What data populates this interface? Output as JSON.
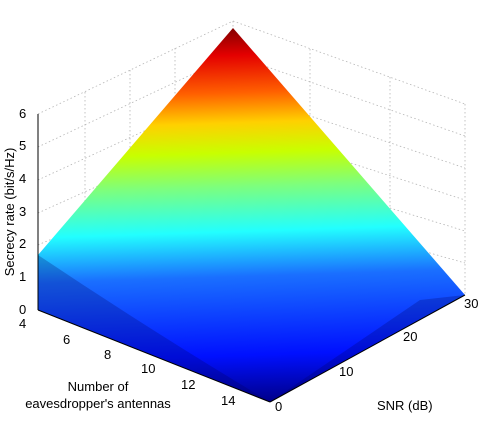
{
  "chart_data": {
    "type": "surface",
    "title": "",
    "xlabel_lines": [
      "Number of",
      "eavesdropper's antennas"
    ],
    "ylabel": "SNR (dB)",
    "zlabel": "Secrecy rate (bit/s/Hz)",
    "x_ticks": [
      "4",
      "6",
      "8",
      "10",
      "12",
      "14"
    ],
    "y_ticks": [
      "0",
      "10",
      "20",
      "30"
    ],
    "z_ticks": [
      "0",
      "1",
      "2",
      "3",
      "4",
      "5",
      "6"
    ],
    "xlim": [
      4,
      15
    ],
    "ylim": [
      0,
      30
    ],
    "zlim": [
      0,
      6
    ],
    "colormap": "jet",
    "grid": true,
    "corner_values": {
      "x4_snr0": 0.0,
      "x4_snr30": 6.1,
      "x15_snr0": 0.0,
      "x15_snr30": 0.0,
      "x4_snr30_note": "peak"
    },
    "edge_x4": [
      {
        "snr": 0,
        "value": 0.0
      },
      {
        "snr": 2,
        "value": 1.7
      },
      {
        "snr": 10,
        "value": 2.8
      },
      {
        "snr": 20,
        "value": 4.3
      },
      {
        "snr": 30,
        "value": 6.1
      }
    ],
    "edge_snr30": [
      {
        "x": 4,
        "value": 6.1
      },
      {
        "x": 6,
        "value": 4.6
      },
      {
        "x": 8,
        "value": 3.5
      },
      {
        "x": 10,
        "value": 2.5
      },
      {
        "x": 12,
        "value": 1.5
      },
      {
        "x": 14,
        "value": 0.7
      },
      {
        "x": 15,
        "value": 0.0
      }
    ]
  }
}
